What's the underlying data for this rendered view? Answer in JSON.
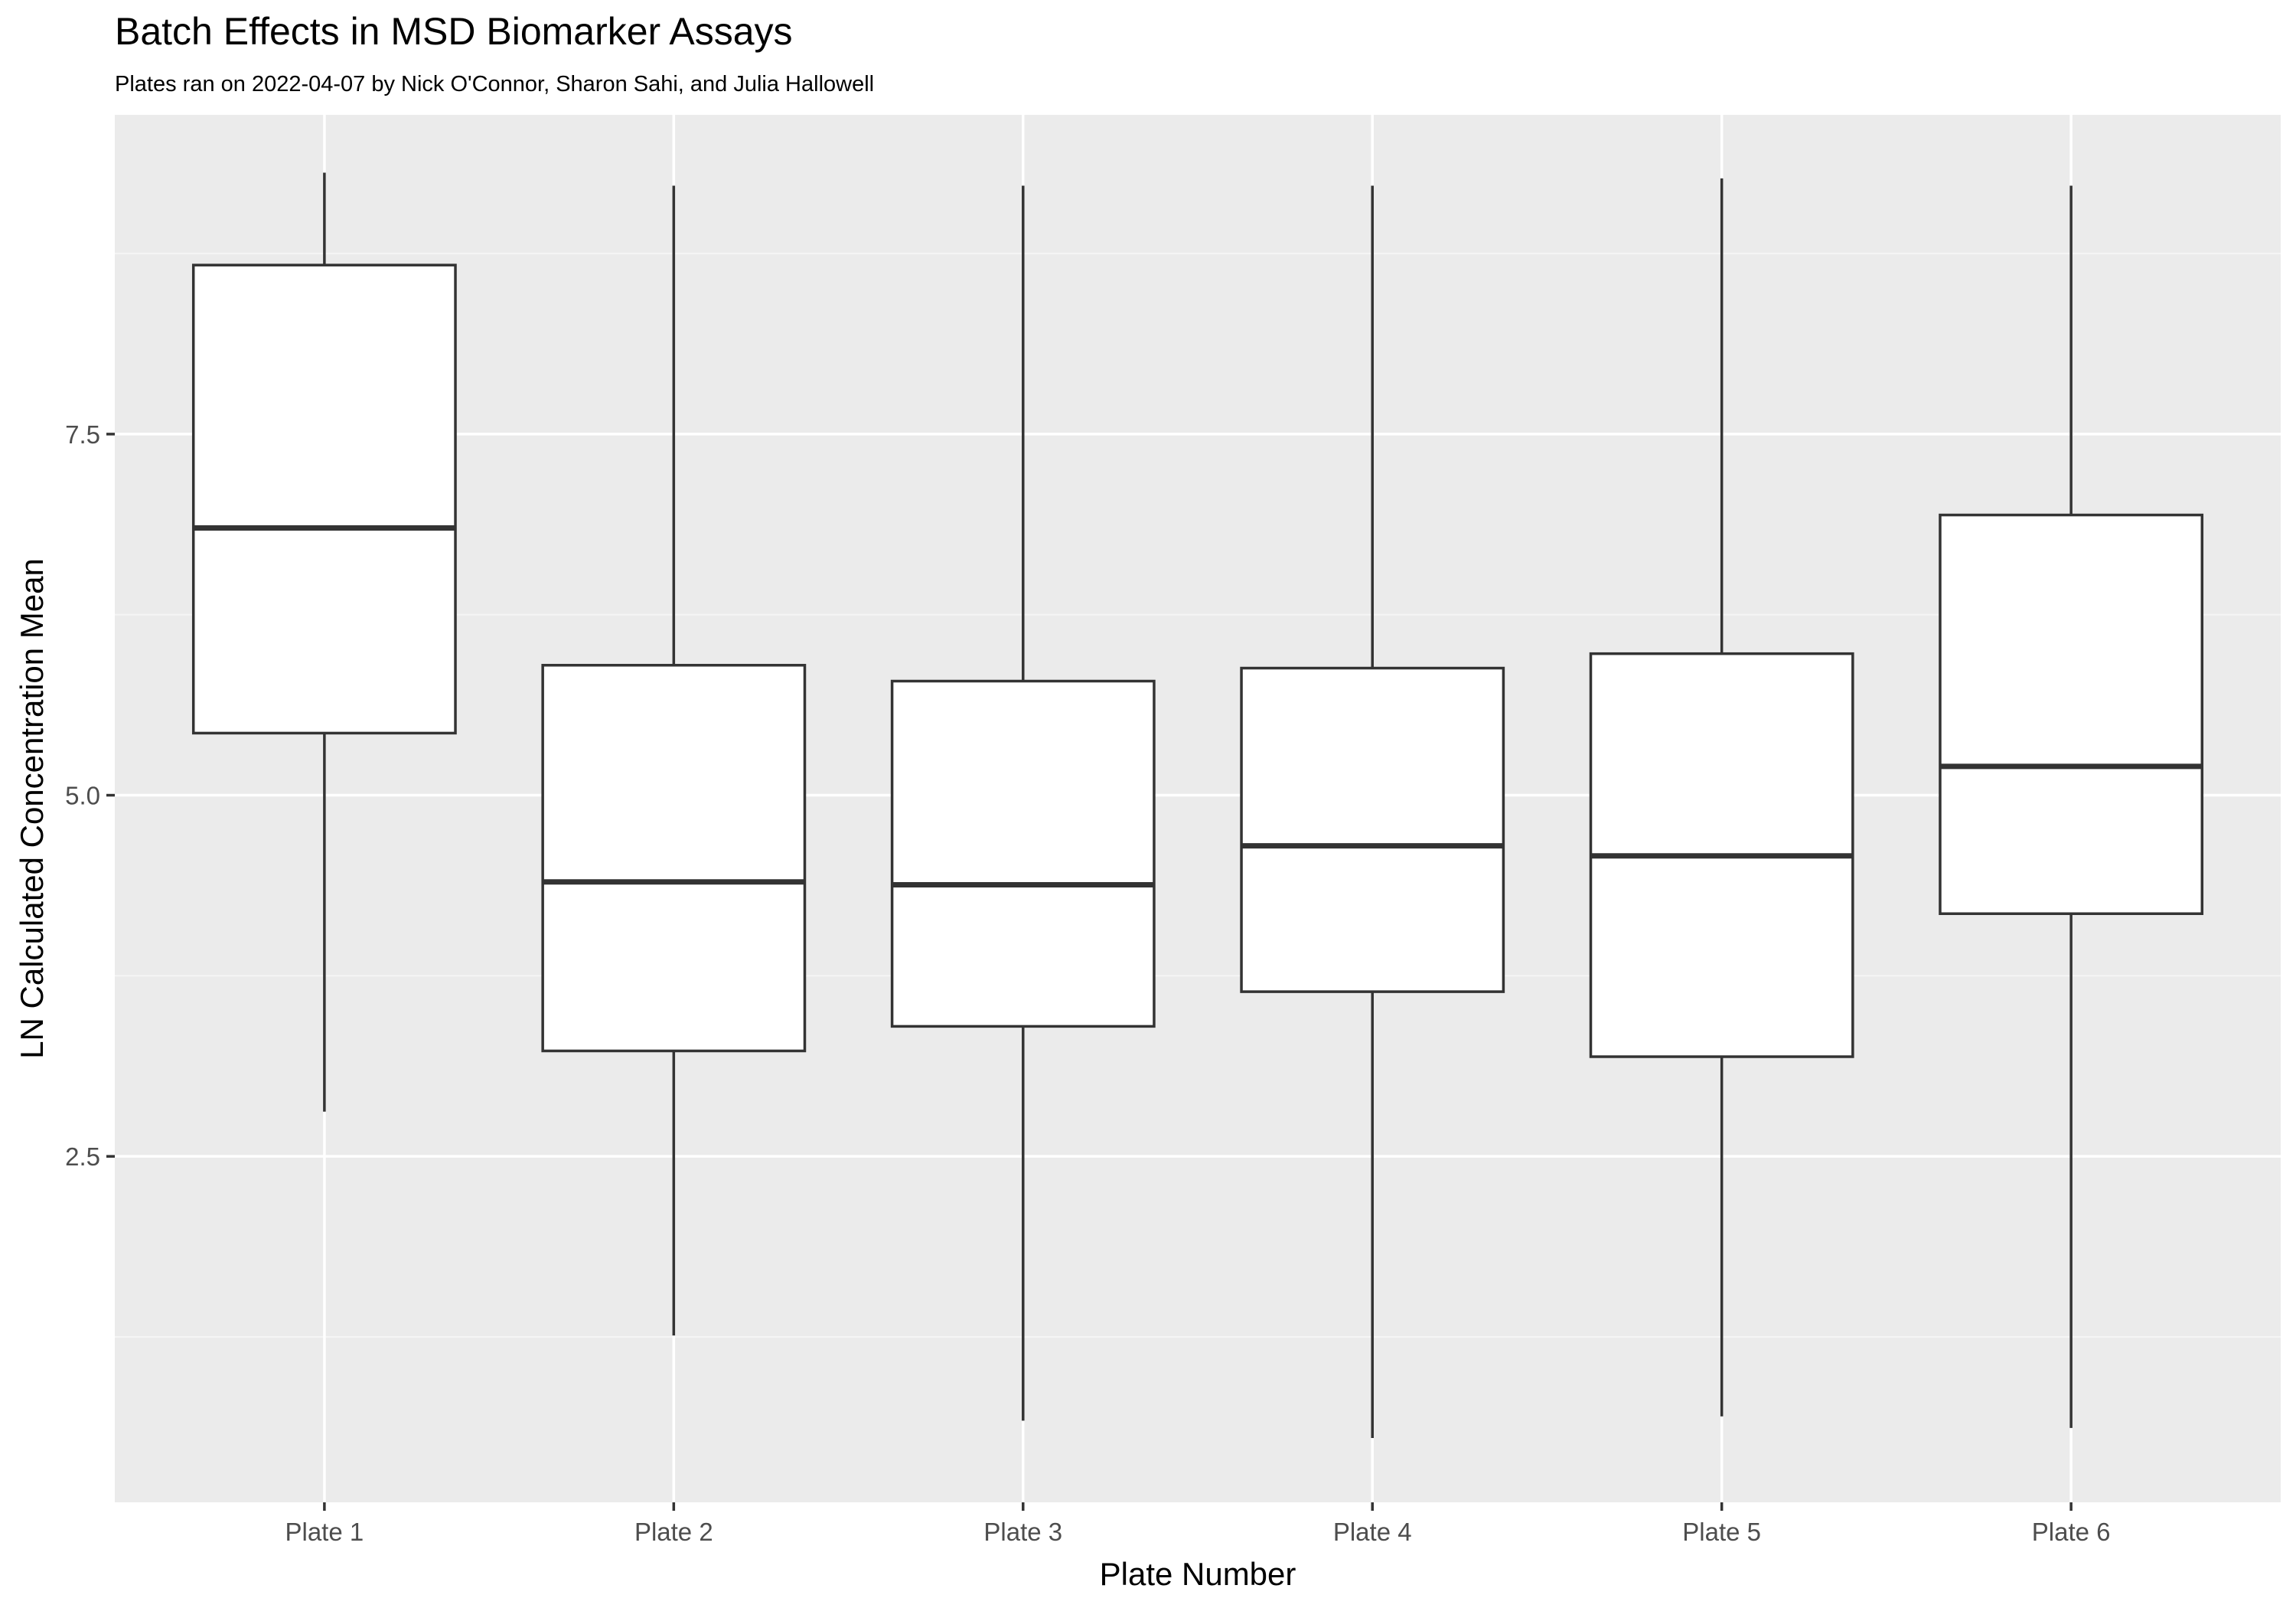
{
  "chart_data": {
    "type": "box",
    "title": "Batch Effects in MSD Biomarker Assays",
    "subtitle": "Plates ran on 2022-04-07 by Nick O'Connor, Sharon Sahi, and Julia Hallowell",
    "xlabel": "Plate Number",
    "ylabel": "LN Calculated Concentration Mean",
    "categories": [
      "Plate 1",
      "Plate 2",
      "Plate 3",
      "Plate 4",
      "Plate 5",
      "Plate 6"
    ],
    "boxes": [
      {
        "min": 2.81,
        "q1": 5.43,
        "median": 6.85,
        "q3": 8.67,
        "max": 9.31
      },
      {
        "min": 1.26,
        "q1": 3.23,
        "median": 4.4,
        "q3": 5.9,
        "max": 9.22
      },
      {
        "min": 0.67,
        "q1": 3.4,
        "median": 4.38,
        "q3": 5.79,
        "max": 9.22
      },
      {
        "min": 0.55,
        "q1": 3.64,
        "median": 4.65,
        "q3": 5.88,
        "max": 9.22
      },
      {
        "min": 0.7,
        "q1": 3.19,
        "median": 4.58,
        "q3": 5.98,
        "max": 9.27
      },
      {
        "min": 0.62,
        "q1": 4.18,
        "median": 5.2,
        "q3": 6.94,
        "max": 9.22
      }
    ],
    "y_ticks": [
      2.5,
      5.0,
      7.5
    ],
    "y_tick_labels": [
      "2.5",
      "5.0",
      "7.5"
    ],
    "ylim": [
      0.105,
      9.71
    ],
    "grid": true,
    "colors": {
      "panel_background": "#ebebeb",
      "grid_major": "#ffffff",
      "grid_minor": "#f5f5f5",
      "box_fill": "#ffffff",
      "box_line": "#333333"
    }
  }
}
